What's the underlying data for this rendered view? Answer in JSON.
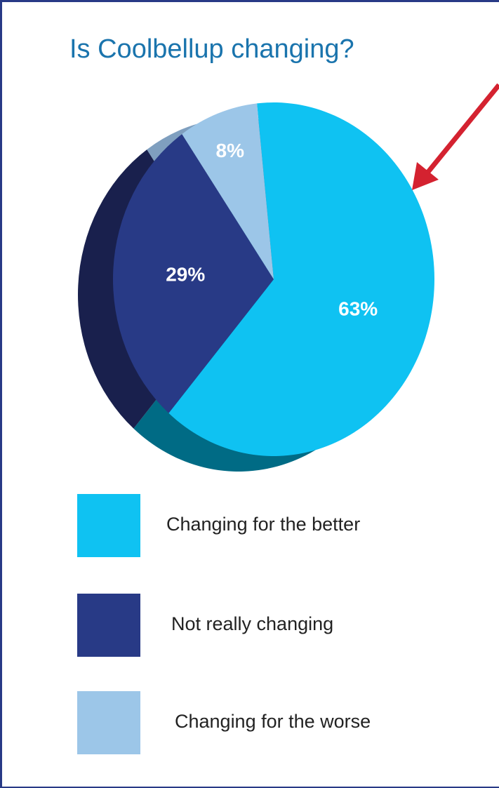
{
  "chart_data": {
    "type": "pie",
    "title": "Is Coolbellup changing?",
    "categories": [
      "Changing for the better",
      "Not really changing",
      "Changing for the worse"
    ],
    "values": [
      63,
      29,
      8
    ],
    "labels": [
      "63%",
      "29%",
      "8%"
    ],
    "legend": "bottom",
    "colors": {
      "title": "#1a74ad",
      "slices": [
        "#0fc2f2",
        "#283a86",
        "#9cc6e8"
      ],
      "slice_sides": [
        "#006b85",
        "#19204d",
        "#7f9fbf"
      ],
      "arrow": "#d42230"
    }
  }
}
